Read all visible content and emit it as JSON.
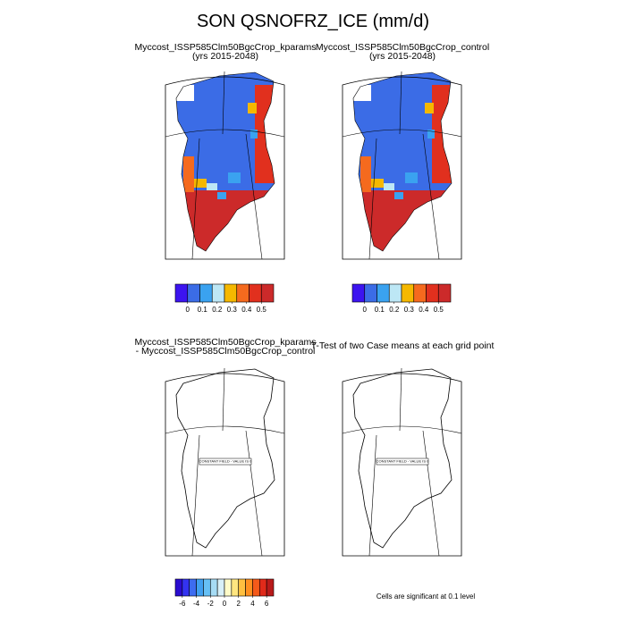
{
  "title": "SON QSNOFRZ_ICE (mm/d)",
  "panels": [
    {
      "title": "Myccost_ISSP585Clm50BgcCrop_kparams",
      "subtitle": "(yrs 2015-2048)"
    },
    {
      "title": "Myccost_ISSP585Clm50BgcCrop_control",
      "subtitle": "(yrs 2015-2048)"
    },
    {
      "title": "Myccost_ISSP585Clm50BgcCrop_kparams",
      "subtitle": "- Myccost_ISSP585Clm50BgcCrop_control",
      "annotation": "CONSTANT FIELD - VALUE IS 0"
    },
    {
      "title": "T-Test of two Case means at each grid point",
      "annotation": "CONSTANT FIELD - VALUE IS 0"
    }
  ],
  "colorbars": [
    {
      "colors": [
        "#3c14f0",
        "#3b6ce6",
        "#3aa2f0",
        "#bde7f5",
        "#f5b800",
        "#f56a1e",
        "#e1301e",
        "#cc2a2a"
      ],
      "ticks": [
        0,
        0.1,
        0.2,
        0.3,
        0.4,
        0.5
      ]
    },
    {
      "colors": [
        "#3c14f0",
        "#3b6ce6",
        "#3aa2f0",
        "#bde7f5",
        "#f5b800",
        "#f56a1e",
        "#e1301e",
        "#cc2a2a"
      ],
      "ticks": [
        0,
        0.1,
        0.2,
        0.3,
        0.4,
        0.5
      ]
    },
    {
      "colors": [
        "#2a0cd0",
        "#3333f0",
        "#3d6cf0",
        "#3f9ff0",
        "#66c0f5",
        "#a6dcf5",
        "#d8f0f8",
        "#fffbc8",
        "#ffe680",
        "#ffc040",
        "#ff9020",
        "#f55a1a",
        "#e02a1a",
        "#b81a1a"
      ],
      "ticks": [
        -6,
        -4,
        -2,
        0,
        2,
        4,
        6
      ]
    }
  ],
  "note": "Cells are significant at 0.1 level"
}
